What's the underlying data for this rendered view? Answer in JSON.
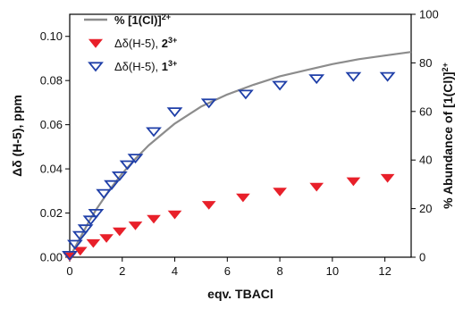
{
  "chart_data": {
    "type": "scatter",
    "xlabel": "eqv. TBACl",
    "ylabel": "Δδ (H-5), ppm",
    "y2label": "% Abundance of [1(Cl)]2+",
    "xlim": [
      0,
      13
    ],
    "ylim": [
      0,
      0.11
    ],
    "y2lim": [
      0,
      100
    ],
    "x_ticks": [
      "0",
      "2",
      "4",
      "6",
      "8",
      "10",
      "12"
    ],
    "y_ticks": [
      "0.00",
      "0.02",
      "0.04",
      "0.06",
      "0.08",
      "0.10"
    ],
    "y2_ticks": [
      "0",
      "20",
      "40",
      "60",
      "80",
      "100"
    ],
    "grid": false,
    "legend_position": "top-left",
    "legend": [
      {
        "label": "% [1(Cl)]2+",
        "marker": "line",
        "color": "#8c8c8c"
      },
      {
        "label": "Δδ(H-5), 23+",
        "marker": "filled-triangle-down",
        "color": "#e8202a"
      },
      {
        "label": "Δδ(H-5), 13+",
        "marker": "open-triangle-down",
        "color": "#1f3fa8"
      }
    ],
    "series": [
      {
        "name": "% [1(Cl)]2+",
        "kind": "line",
        "axis": "right",
        "color": "#8c8c8c",
        "x": [
          0,
          0.25,
          0.5,
          0.75,
          1.0,
          1.5,
          2.0,
          2.5,
          3.0,
          3.5,
          4.0,
          5.0,
          6.0,
          7.0,
          8.0,
          9.0,
          10.0,
          11.0,
          12.0,
          13.0
        ],
        "y": [
          0,
          5,
          10,
          15,
          19.5,
          27.5,
          34.5,
          40.5,
          46,
          50.5,
          55,
          62,
          67,
          71,
          74.5,
          77,
          79.5,
          81.5,
          83,
          84.5
        ]
      },
      {
        "name": "Δδ(H-5), 23+",
        "kind": "scatter",
        "axis": "left",
        "marker": "filled-triangle-down",
        "color": "#e8202a",
        "x": [
          0,
          0.4,
          0.9,
          1.4,
          1.9,
          2.5,
          3.2,
          4.0,
          5.3,
          6.6,
          8.0,
          9.4,
          10.8,
          12.1
        ],
        "y": [
          0.0005,
          0.003,
          0.0065,
          0.0088,
          0.0118,
          0.0145,
          0.0175,
          0.0195,
          0.0238,
          0.0272,
          0.0298,
          0.032,
          0.0345,
          0.036
        ]
      },
      {
        "name": "Δδ(H-5), 13+",
        "kind": "scatter",
        "axis": "left",
        "marker": "open-triangle-down",
        "color": "#1f3fa8",
        "x": [
          0,
          0.2,
          0.4,
          0.6,
          0.8,
          1.0,
          1.3,
          1.6,
          1.9,
          2.2,
          2.5,
          3.2,
          4.0,
          5.3,
          6.7,
          8.0,
          9.4,
          10.8,
          12.1
        ],
        "y": [
          0.001,
          0.006,
          0.01,
          0.013,
          0.017,
          0.02,
          0.029,
          0.033,
          0.037,
          0.042,
          0.045,
          0.057,
          0.066,
          0.07,
          0.074,
          0.078,
          0.081,
          0.082,
          0.082
        ]
      }
    ]
  }
}
